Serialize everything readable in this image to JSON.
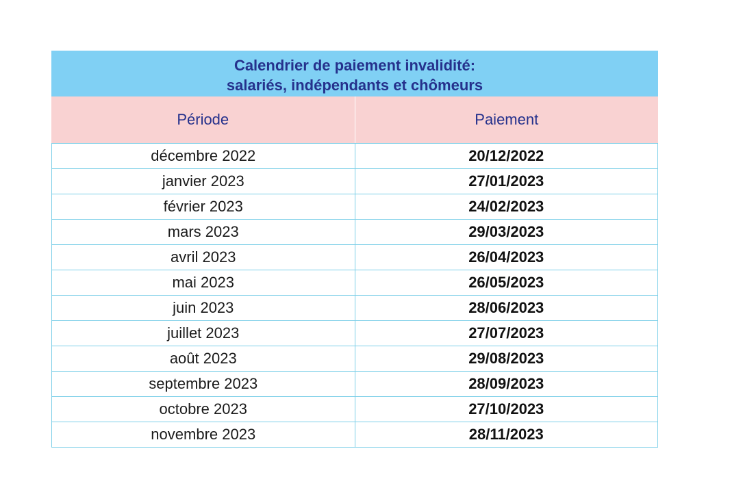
{
  "table": {
    "title_line1": "Calendrier de paiement invalidité:",
    "title_line2": "salariés, indépendants et chômeurs",
    "headers": [
      "Période",
      "Paiement"
    ],
    "rows": [
      {
        "period": "décembre 2022",
        "payment": "20/12/2022"
      },
      {
        "period": "janvier 2023",
        "payment": "27/01/2023"
      },
      {
        "period": "février 2023",
        "payment": "24/02/2023"
      },
      {
        "period": "mars 2023",
        "payment": "29/03/2023"
      },
      {
        "period": "avril 2023",
        "payment": "26/04/2023"
      },
      {
        "period": "mai 2023",
        "payment": "26/05/2023"
      },
      {
        "period": "juin 2023",
        "payment": "28/06/2023"
      },
      {
        "period": "juillet 2023",
        "payment": "27/07/2023"
      },
      {
        "period": "août 2023",
        "payment": "29/08/2023"
      },
      {
        "period": "septembre 2023",
        "payment": "28/09/2023"
      },
      {
        "period": "octobre 2023",
        "payment": "27/10/2023"
      },
      {
        "period": "novembre 2023",
        "payment": "28/11/2023"
      }
    ]
  },
  "colors": {
    "title_background": "#80d0f4",
    "header_background": "#f9d2d2",
    "heading_text": "#25318c",
    "grid_lines": "#7ccfe8"
  }
}
